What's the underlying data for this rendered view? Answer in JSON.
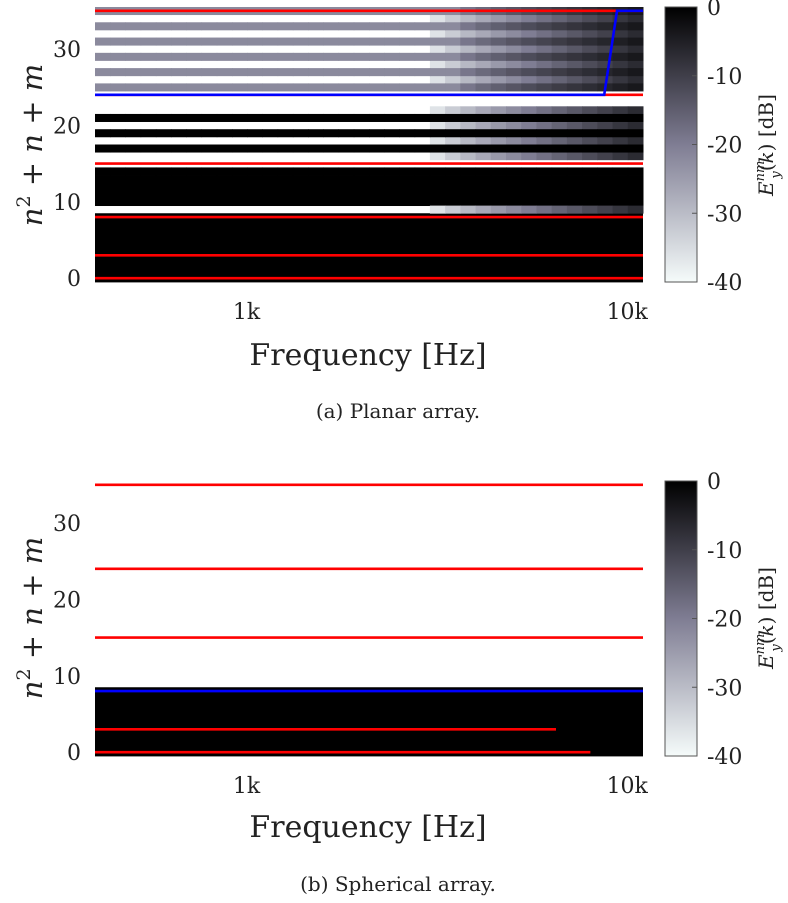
{
  "colormap": {
    "high": "#000000",
    "mid": "#7f7d93",
    "low": "#f5fbfa"
  },
  "line_colors": {
    "red": "#ff0000",
    "blue": "#0000ff"
  },
  "chart_data": [
    {
      "type": "heatmap",
      "caption": "(a) Planar array.",
      "xlabel": "Frequency [Hz]",
      "ylabel": "n² + n + m",
      "x_scale": "log",
      "xlim": [
        400,
        11000
      ],
      "ylim": [
        -0.5,
        35.5
      ],
      "x_ticks": [
        1000,
        10000
      ],
      "x_tick_labels": [
        "1k",
        "10k"
      ],
      "y_ticks": [
        0,
        10,
        20,
        30
      ],
      "y_tick_labels": [
        "0",
        "10",
        "20",
        "30"
      ],
      "colorbar": {
        "label": "E_y^{nm}(k) [dB]",
        "range": [
          -40,
          0
        ],
        "ticks": [
          0,
          -10,
          -20,
          -30,
          -40
        ],
        "tick_labels": [
          "0",
          "-10",
          "-20",
          "-30",
          "-40"
        ]
      },
      "fully_captured_rows": [
        0,
        1,
        2,
        3,
        4,
        5,
        6,
        7,
        8
      ],
      "row_profiles": [
        {
          "rows": [
            10,
            11,
            12,
            13,
            14
          ],
          "start_frequency_hz": 100000,
          "floor_db": 0
        },
        {
          "rows": [
            9
          ],
          "start_frequency_hz": 3000,
          "floor_db": -40
        },
        {
          "rows": [
            16,
            18,
            20,
            22
          ],
          "start_frequency_hz": 3000,
          "floor_db": -40
        },
        {
          "rows": [
            17,
            19,
            21
          ],
          "start_frequency_hz": 100000,
          "floor_db": 0
        },
        {
          "rows": [
            23,
            24
          ],
          "start_frequency_hz": 100000,
          "floor_db": -40
        },
        {
          "rows": [
            26,
            28,
            30,
            32,
            34
          ],
          "start_frequency_hz": 3000,
          "floor_db": -40
        },
        {
          "rows": [
            25,
            27,
            29,
            31,
            33,
            35
          ],
          "start_frequency_hz": 3500,
          "floor_db": -22
        }
      ],
      "red_lines": [
        0,
        3,
        8,
        15,
        24,
        35
      ],
      "blue_line": {
        "x": [
          400,
          8700,
          9400,
          11000
        ],
        "y": [
          24,
          24,
          35,
          35
        ]
      }
    },
    {
      "type": "heatmap",
      "caption": "(b) Spherical array.",
      "xlabel": "Frequency [Hz]",
      "ylabel": "n² + n + m",
      "x_scale": "log",
      "xlim": [
        400,
        11000
      ],
      "ylim": [
        -0.5,
        35.5
      ],
      "x_ticks": [
        1000,
        10000
      ],
      "x_tick_labels": [
        "1k",
        "10k"
      ],
      "y_ticks": [
        0,
        10,
        20,
        30
      ],
      "y_tick_labels": [
        "0",
        "10",
        "20",
        "30"
      ],
      "colorbar": {
        "label": "E_y^{nm}(k) [dB]",
        "range": [
          -40,
          0
        ],
        "ticks": [
          0,
          -10,
          -20,
          -30,
          -40
        ],
        "tick_labels": [
          "0",
          "-10",
          "-20",
          "-30",
          "-40"
        ]
      },
      "fully_captured_rows": [
        0,
        1,
        2,
        3,
        4,
        5,
        6,
        7,
        8
      ],
      "row_profiles": [],
      "red_lines": [
        0,
        3,
        15,
        24,
        35
      ],
      "red_lines_extent": [
        8000,
        6500,
        11000,
        11000,
        11000
      ],
      "blue_line": {
        "x": [
          400,
          11000
        ],
        "y": [
          8,
          8
        ]
      }
    }
  ]
}
